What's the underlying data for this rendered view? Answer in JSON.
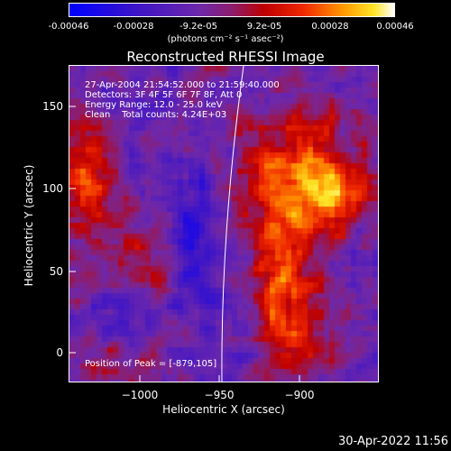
{
  "colorbar": {
    "ticks": [
      "-0.00046",
      "-0.00028",
      "-9.2e-05",
      "9.2e-05",
      "0.00028",
      "0.00046"
    ],
    "units": "(photons cm⁻² s⁻¹ asec⁻²)",
    "min": -0.00046,
    "max": 0.00046
  },
  "chart_data": {
    "type": "heatmap",
    "title": "Reconstructed RHESSI Image",
    "xlabel": "Heliocentric X (arcsec)",
    "ylabel": "Heliocentric Y (arcsec)",
    "xlim": [
      -1045,
      -853
    ],
    "ylim": [
      -15,
      178
    ],
    "x_ticks": [
      "−1000",
      "−950",
      "−900"
    ],
    "x_tick_values": [
      -1000,
      -950,
      -900
    ],
    "y_ticks": [
      "0",
      "50",
      "100",
      "150"
    ],
    "y_tick_values": [
      0,
      50,
      100,
      150
    ],
    "annotations": {
      "time_range": "27-Apr-2004 21:54:52.000 to 21:59:40.000",
      "detectors": "Detectors: 3F 4F 5F 6F 7F 8F, Att 0",
      "energy": "Energy Range: 12.0 - 25.0 keV",
      "clean": "Clean    Total counts: 4.24E+03",
      "peak": "Position of Peak = [-879,105]"
    },
    "peak_position": [
      -879,
      105
    ]
  },
  "timestamp": "30-Apr-2022 11:56"
}
